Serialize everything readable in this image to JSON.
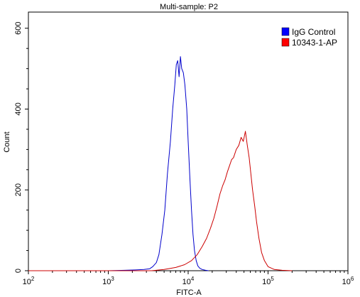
{
  "chart_data": {
    "type": "line",
    "title": "Multi-sample: P2",
    "xlabel": "FITC-A",
    "ylabel": "Count",
    "xscale": "log",
    "xlim": [
      100,
      1000000
    ],
    "ylim": [
      0,
      640
    ],
    "x_ticks": [
      {
        "base": "10",
        "exp": "2",
        "value": 100
      },
      {
        "base": "10",
        "exp": "3",
        "value": 1000
      },
      {
        "base": "10",
        "exp": "4",
        "value": 10000
      },
      {
        "base": "10",
        "exp": "5",
        "value": 100000
      },
      {
        "base": "10",
        "exp": "6",
        "value": 1000000
      }
    ],
    "y_ticks": [
      {
        "label": "0",
        "value": 0
      },
      {
        "label": "200",
        "value": 200
      },
      {
        "label": "400",
        "value": 400
      },
      {
        "label": "600",
        "value": 600
      }
    ],
    "grid": false,
    "legend_position": "top-right",
    "series": [
      {
        "name": "IgG Control",
        "color": "#0000cc",
        "legend_color": "#0000ff",
        "x": [
          100,
          1000,
          1600,
          2200,
          2800,
          3300,
          3600,
          4000,
          4300,
          4700,
          5100,
          5500,
          6000,
          6400,
          6800,
          7100,
          7400,
          7700,
          8000,
          8300,
          8700,
          9100,
          9600,
          10000,
          10500,
          11000,
          11500,
          12000,
          12600,
          13200,
          14000,
          15000,
          16500,
          18000
        ],
        "y": [
          0,
          0,
          1,
          2,
          3,
          5,
          10,
          20,
          40,
          90,
          150,
          240,
          320,
          400,
          460,
          510,
          520,
          480,
          530,
          500,
          490,
          460,
          400,
          320,
          230,
          150,
          90,
          50,
          25,
          12,
          6,
          3,
          1,
          0
        ]
      },
      {
        "name": "10343-1-AP",
        "color": "#cc0000",
        "legend_color": "#ff0000",
        "x": [
          100,
          3500,
          5000,
          7000,
          9000,
          11000,
          13000,
          15000,
          17000,
          19000,
          21000,
          23000,
          25000,
          27000,
          29000,
          31000,
          33000,
          35000,
          37000,
          40000,
          43000,
          46000,
          49000,
          52000,
          55000,
          58000,
          61000,
          64000,
          68000,
          72000,
          77000,
          83000,
          90000,
          100000,
          120000,
          150000,
          200000
        ],
        "y": [
          0,
          0,
          3,
          8,
          15,
          25,
          40,
          60,
          80,
          105,
          130,
          160,
          190,
          210,
          225,
          245,
          260,
          275,
          280,
          300,
          310,
          330,
          320,
          345,
          310,
          280,
          240,
          200,
          160,
          120,
          80,
          45,
          25,
          10,
          3,
          1,
          0
        ]
      }
    ]
  }
}
